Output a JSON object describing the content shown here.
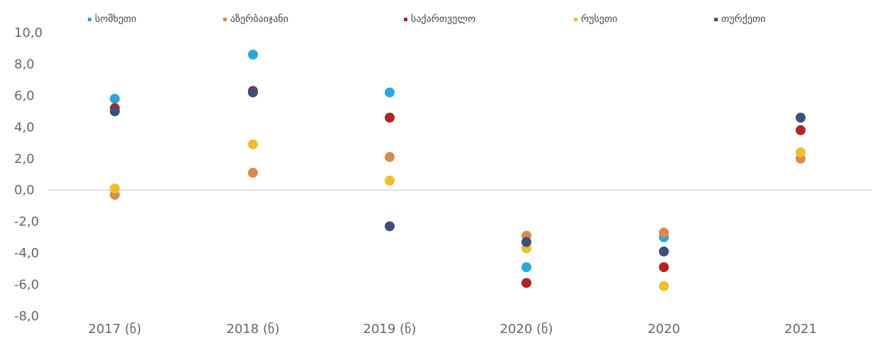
{
  "chart_data": {
    "type": "scatter",
    "categories": [
      "2017 (ნ)",
      "2018 (ნ)",
      "2019 (ნ)",
      "2020 (ნ)",
      "2020",
      "2021"
    ],
    "y_tick_labels": [
      "10,0",
      "8,0",
      "6,0",
      "4,0",
      "2,0",
      "0,0",
      "-2,0",
      "-4,0",
      "-6,0",
      "-8,0"
    ],
    "ylim": [
      -8,
      10
    ],
    "grid": false,
    "legend_position": "top",
    "series": [
      {
        "name": "სომხეთი",
        "color": "#2aa7dd",
        "values": [
          5.8,
          8.6,
          6.2,
          -4.9,
          -3.0,
          null
        ]
      },
      {
        "name": "აზერბაიჯანი",
        "color": "#d98a4d",
        "values": [
          -0.3,
          1.1,
          2.1,
          -2.9,
          -2.7,
          2.0
        ]
      },
      {
        "name": "საქართველო",
        "color": "#b32323",
        "values": [
          5.2,
          6.3,
          4.6,
          -5.9,
          -4.9,
          3.8
        ]
      },
      {
        "name": "რუსეთი",
        "color": "#f0bd2f",
        "values": [
          0.1,
          2.9,
          0.6,
          -3.7,
          -6.1,
          2.4
        ]
      },
      {
        "name": "თურქეთი",
        "color": "#3d4f7a",
        "values": [
          5.0,
          6.2,
          -2.3,
          -3.3,
          -3.9,
          4.6
        ]
      }
    ]
  }
}
